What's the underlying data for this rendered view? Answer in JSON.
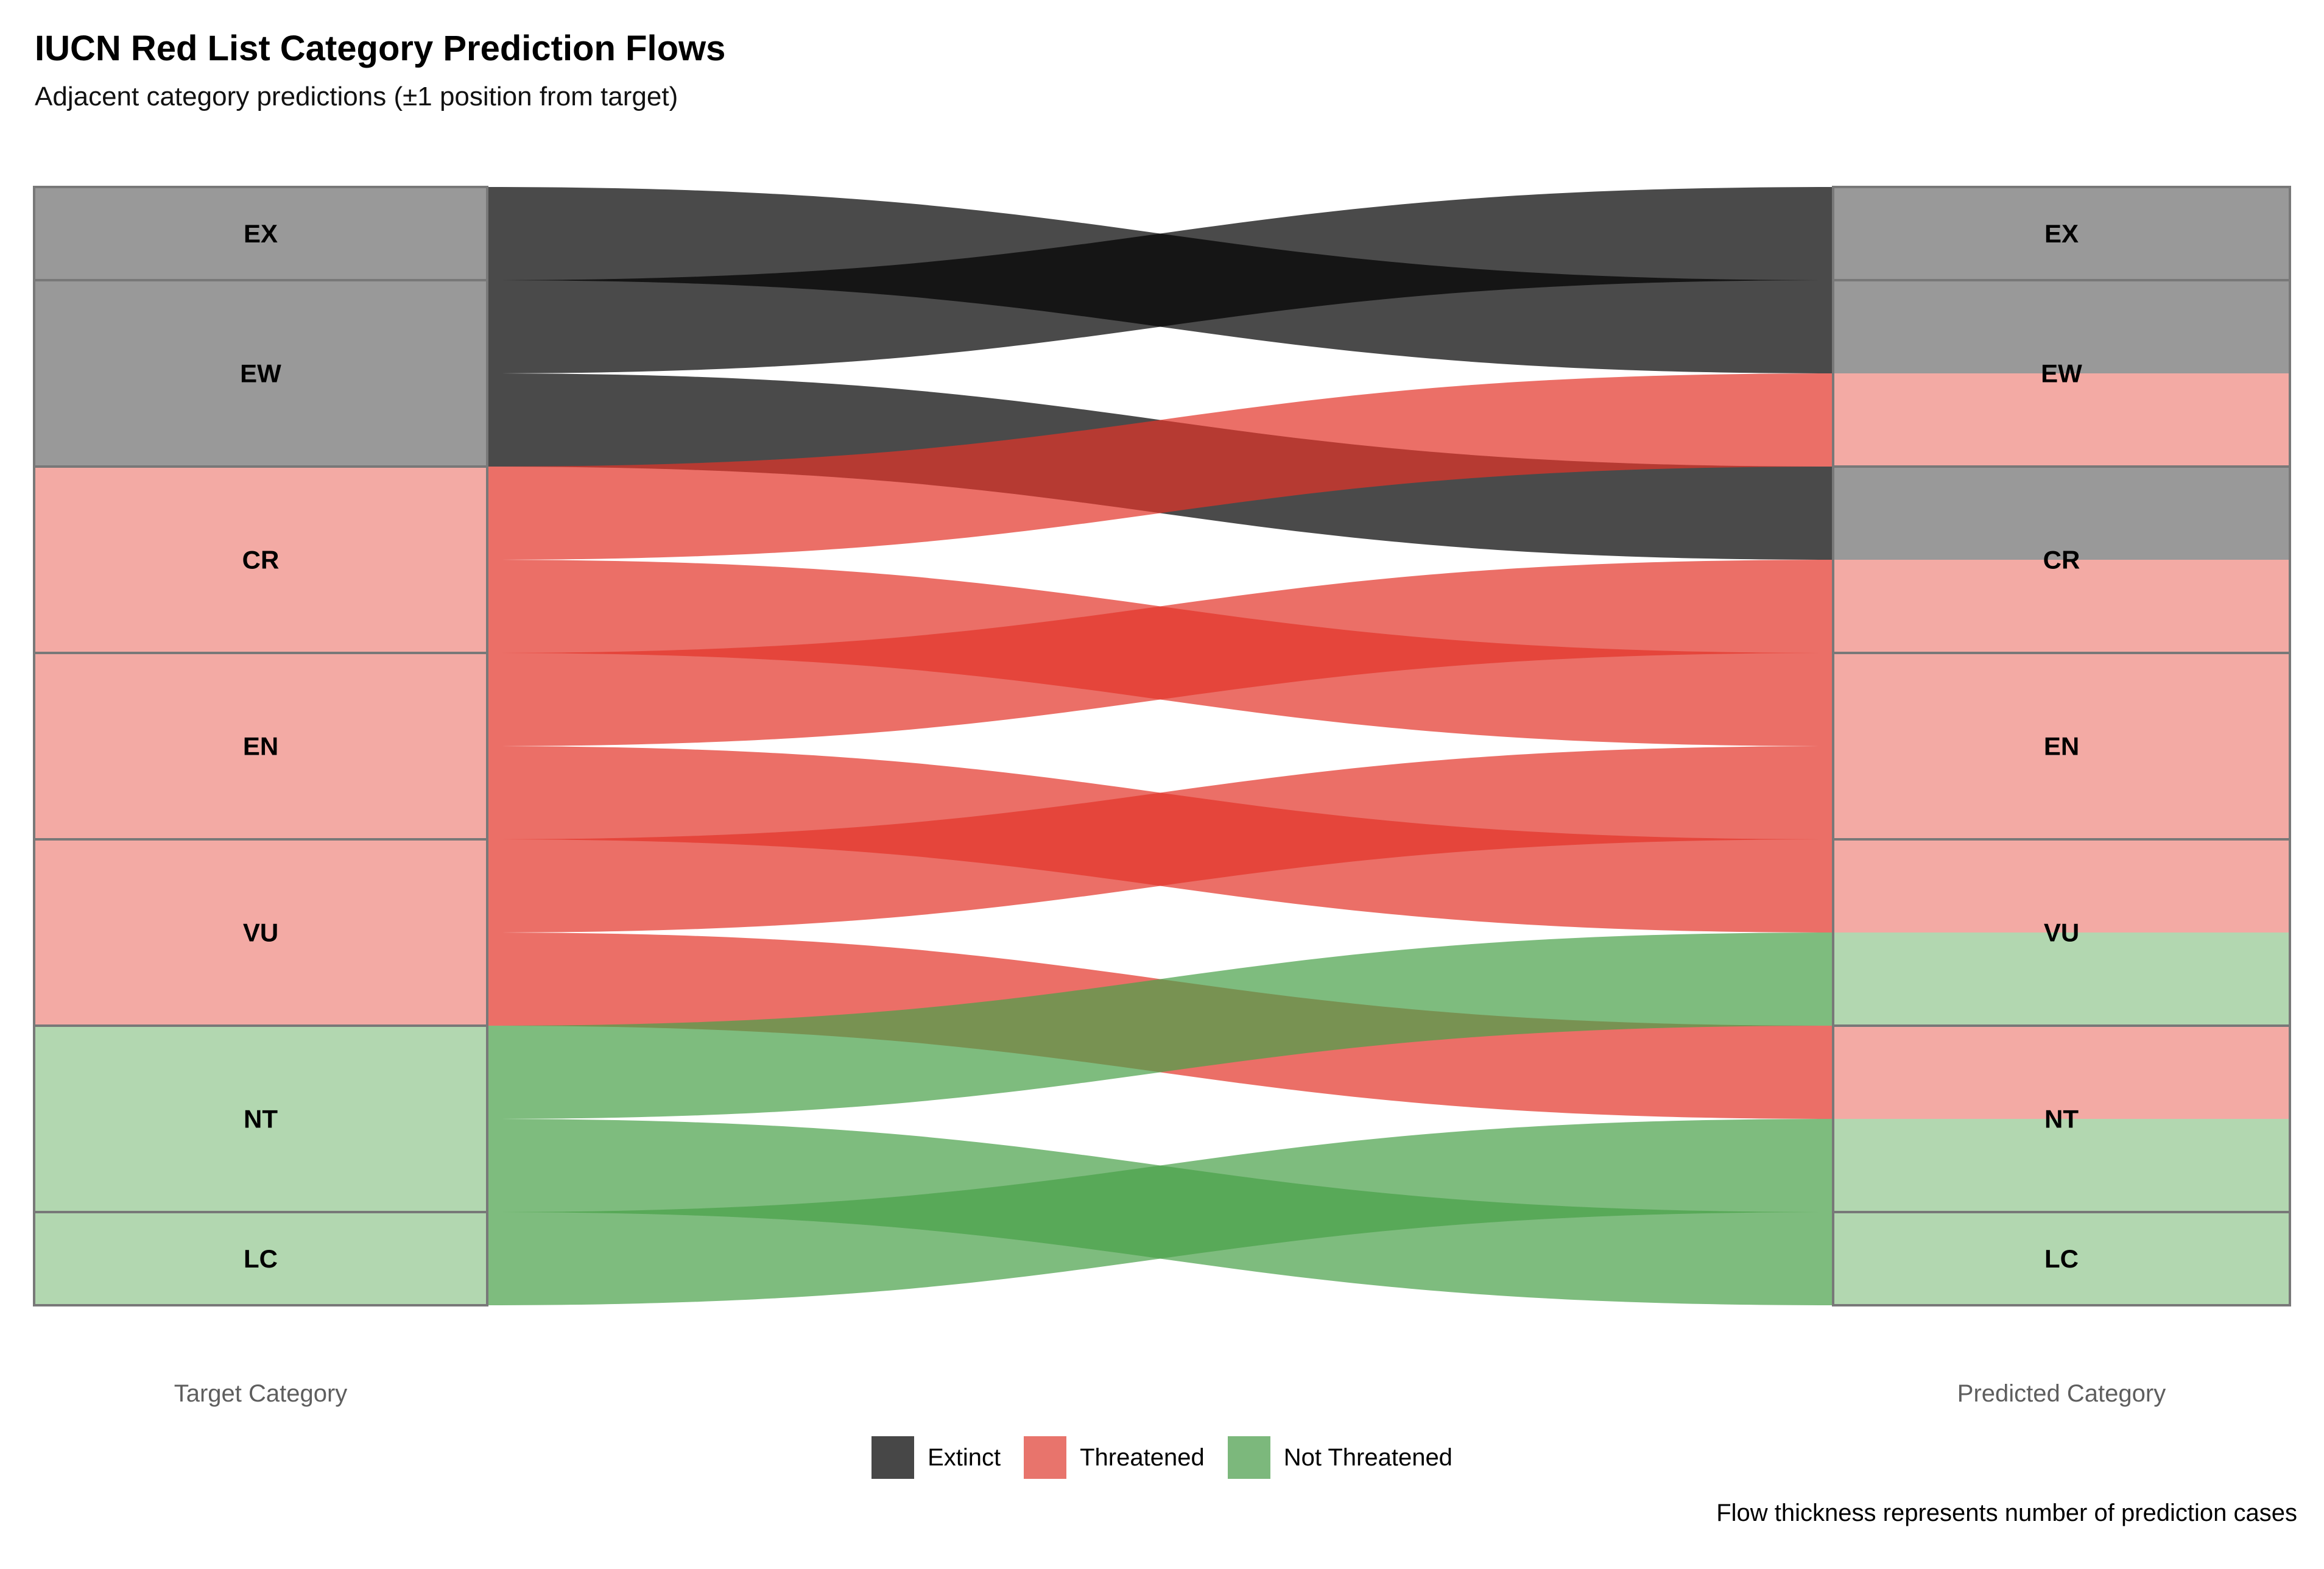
{
  "title": "IUCN Red List Category Prediction Flows",
  "subtitle": "Adjacent category predictions (±1 position from target)",
  "axis_labels": {
    "left": "Target Category",
    "right": "Predicted Category"
  },
  "footnote": "Flow thickness represents number of prediction cases",
  "legend": {
    "items": [
      {
        "label": "Extinct",
        "color": "#474747"
      },
      {
        "label": "Threatened",
        "color": "#e8746c"
      },
      {
        "label": "Not Threatened",
        "color": "#7cb87c"
      }
    ]
  },
  "chart_data": {
    "type": "sankey",
    "title": "IUCN Red List Category Prediction Flows",
    "subtitle": "Adjacent category predictions (±1 position from target)",
    "left_axis_label": "Target Category",
    "right_axis_label": "Predicted Category",
    "value_note": "No numeric labels shown; flow values are relative thickness units (all flows equal). Each flow = 1 unit; node height = sum of its flows.",
    "legend_position": "bottom-center",
    "nodes": [
      {
        "id": "EX",
        "label": "EX",
        "group": "extinct",
        "size": 1
      },
      {
        "id": "EW",
        "label": "EW",
        "group": "extinct",
        "size": 2
      },
      {
        "id": "CR",
        "label": "CR",
        "group": "threatened",
        "size": 2
      },
      {
        "id": "EN",
        "label": "EN",
        "group": "threatened",
        "size": 2
      },
      {
        "id": "VU",
        "label": "VU",
        "group": "threatened",
        "size": 2
      },
      {
        "id": "NT",
        "label": "NT",
        "group": "not_threatened",
        "size": 2
      },
      {
        "id": "LC",
        "label": "LC",
        "group": "not_threatened",
        "size": 1
      }
    ],
    "groups": {
      "extinct": {
        "label": "Extinct",
        "node_color": "#999999",
        "flow_color": "#000000",
        "flow_opacity": 0.71,
        "legend_color": "#474747"
      },
      "threatened": {
        "label": "Threatened",
        "node_color": "#f3aaa4",
        "flow_color": "#e33429",
        "flow_opacity": 0.71,
        "legend_color": "#e8746c"
      },
      "not_threatened": {
        "label": "Not Threatened",
        "node_color": "#b2d7b0",
        "flow_color": "#49a149",
        "flow_opacity": 0.71,
        "legend_color": "#7cb87c"
      }
    },
    "flows": [
      {
        "source": "EX",
        "target": "EW",
        "value": 1
      },
      {
        "source": "EW",
        "target": "EX",
        "value": 1
      },
      {
        "source": "EW",
        "target": "CR",
        "value": 1
      },
      {
        "source": "CR",
        "target": "EW",
        "value": 1
      },
      {
        "source": "CR",
        "target": "EN",
        "value": 1
      },
      {
        "source": "EN",
        "target": "CR",
        "value": 1
      },
      {
        "source": "EN",
        "target": "VU",
        "value": 1
      },
      {
        "source": "VU",
        "target": "EN",
        "value": 1
      },
      {
        "source": "VU",
        "target": "NT",
        "value": 1
      },
      {
        "source": "NT",
        "target": "VU",
        "value": 1
      },
      {
        "source": "NT",
        "target": "LC",
        "value": 1
      },
      {
        "source": "LC",
        "target": "NT",
        "value": 1
      }
    ],
    "node_border_color": "#787878",
    "background": "#ffffff"
  }
}
